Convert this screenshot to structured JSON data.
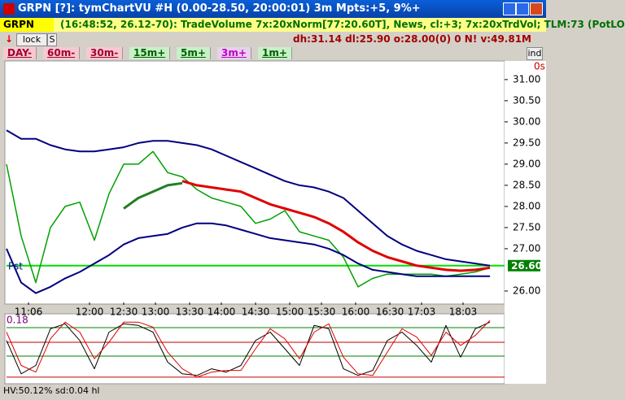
{
  "window": {
    "title": "GRPN [?]: tymChartVU #H (0.00-28.50, 20:00:01) 3m Mpts:+5, 9%+"
  },
  "toolbar": {
    "symbol": "GRPN",
    "info": "(16:48:52, 26.12-70): TradeVolume 7x:20xNorm[77:20.60T], News, cl:+3; 7x:20xTrdVol; TLM:73 (PotLO",
    "lock": "lock",
    "s": "S",
    "stats": "dh:31.14 dl:25.90 o:28.00(0) 0 N! v:49.81M"
  },
  "timeframes": [
    "DAY-",
    "60m-",
    "30m-",
    "15m+",
    "5m+",
    "3m+",
    "1m+"
  ],
  "ind_button": "ind",
  "chart_data": [
    {
      "type": "line",
      "x": [
        0,
        6,
        12,
        18,
        24,
        30,
        36,
        42,
        48,
        54,
        60,
        66,
        72,
        78,
        84,
        90,
        96,
        102,
        108,
        114,
        120,
        126,
        132,
        138,
        144,
        150,
        156,
        162,
        168,
        174,
        180,
        186,
        192,
        198
      ],
      "xlim": [
        0,
        204
      ],
      "xticks": [
        {
          "value": 9,
          "label": "11:06"
        },
        {
          "value": 34,
          "label": "12:00"
        },
        {
          "value": 48,
          "label": "12:30"
        },
        {
          "value": 61,
          "label": "13:00"
        },
        {
          "value": 75,
          "label": "13:30"
        },
        {
          "value": 88,
          "label": "14:00"
        },
        {
          "value": 102,
          "label": "14:30"
        },
        {
          "value": 116,
          "label": "15:00"
        },
        {
          "value": 129,
          "label": "15:30"
        },
        {
          "value": 143,
          "label": "16:00"
        },
        {
          "value": 157,
          "label": "16:30"
        },
        {
          "value": 170,
          "label": "17:03"
        },
        {
          "value": 187,
          "label": "18:03"
        }
      ],
      "ylim": [
        25.73,
        31.44
      ],
      "yticks": [
        {
          "value": 31,
          "label": "31.00"
        },
        {
          "value": 30.5,
          "label": "30.50"
        },
        {
          "value": 30,
          "label": "30.00"
        },
        {
          "value": 29.5,
          "label": "29.50"
        },
        {
          "value": 29,
          "label": "29.00"
        },
        {
          "value": 28.5,
          "label": "28.50"
        },
        {
          "value": 28,
          "label": "28.00"
        },
        {
          "value": 27.5,
          "label": "27.50"
        },
        {
          "value": 27,
          "label": "27.00"
        },
        {
          "value": 26,
          "label": "26.00"
        }
      ],
      "series": [
        {
          "color": "#00a000",
          "width": 1.5,
          "values": [
            29.0,
            27.3,
            26.2,
            27.5,
            28.0,
            28.1,
            27.2,
            28.3,
            29.0,
            29.0,
            29.3,
            28.8,
            28.7,
            28.4,
            28.2,
            28.1,
            28.0,
            27.6,
            27.7,
            27.9,
            27.4,
            27.3,
            27.2,
            26.8,
            26.1,
            26.3,
            26.4,
            26.4,
            26.4,
            26.4,
            26.35,
            26.4,
            26.45,
            26.55
          ]
        },
        {
          "color": "#00007f",
          "width": 2,
          "values": [
            29.8,
            29.6,
            29.6,
            29.45,
            29.35,
            29.3,
            29.3,
            29.35,
            29.4,
            29.5,
            29.55,
            29.55,
            29.5,
            29.45,
            29.35,
            29.2,
            29.05,
            28.9,
            28.75,
            28.6,
            28.5,
            28.45,
            28.35,
            28.2,
            27.9,
            27.6,
            27.3,
            27.1,
            26.95,
            26.85,
            26.75,
            26.7,
            26.65,
            26.6
          ]
        },
        {
          "color": "#00007f",
          "width": 2,
          "values": [
            27.0,
            26.2,
            25.95,
            26.1,
            26.3,
            26.45,
            26.65,
            26.85,
            27.1,
            27.25,
            27.3,
            27.35,
            27.5,
            27.6,
            27.6,
            27.55,
            27.45,
            27.35,
            27.25,
            27.2,
            27.15,
            27.1,
            27.0,
            26.85,
            26.65,
            26.5,
            26.45,
            26.4,
            26.35,
            26.35,
            26.35,
            26.35,
            26.35,
            26.35
          ]
        },
        {
          "color": "#e00000",
          "width": 3,
          "values": [
            null,
            null,
            null,
            null,
            null,
            null,
            null,
            null,
            null,
            null,
            null,
            null,
            28.6,
            28.5,
            28.45,
            28.4,
            28.35,
            28.2,
            28.05,
            27.95,
            27.85,
            27.75,
            27.6,
            27.4,
            27.15,
            26.95,
            26.8,
            26.7,
            26.6,
            26.55,
            26.5,
            26.48,
            26.5,
            26.55
          ]
        },
        {
          "color": "#208020",
          "width": 3,
          "values": [
            null,
            null,
            null,
            null,
            null,
            null,
            null,
            null,
            27.95,
            28.2,
            28.35,
            28.5,
            28.55,
            null,
            null,
            null,
            null,
            null,
            null,
            null,
            null,
            null,
            null,
            null,
            null,
            null,
            null,
            null,
            null,
            null,
            null,
            null,
            null,
            null
          ]
        }
      ],
      "price_line": {
        "value": 26.6,
        "label": "26.60",
        "color": "#00e000"
      },
      "annotations": [
        "Pst",
        "0s"
      ]
    },
    {
      "type": "line",
      "x": [
        0,
        6,
        12,
        18,
        24,
        30,
        36,
        42,
        48,
        54,
        60,
        66,
        72,
        78,
        84,
        90,
        96,
        102,
        108,
        114,
        120,
        126,
        132,
        138,
        144,
        150,
        156,
        162,
        168,
        174,
        180,
        186,
        192,
        198
      ],
      "xlim": [
        0,
        204
      ],
      "ylim": [
        -0.2,
        0.2
      ],
      "yticks": [
        0.18
      ],
      "hlines": [
        {
          "value": 0.127,
          "color": "#008000"
        },
        {
          "value": 0.039,
          "color": "#c00000"
        },
        {
          "value": -0.044,
          "color": "#008000"
        },
        {
          "value": -0.17,
          "color": "#c00000"
        }
      ],
      "series": [
        {
          "color": "#000000",
          "width": 1,
          "values": [
            0.05,
            -0.15,
            -0.1,
            0.12,
            0.15,
            0.05,
            -0.12,
            0.1,
            0.15,
            0.14,
            0.1,
            -0.08,
            -0.15,
            -0.16,
            -0.12,
            -0.14,
            -0.1,
            0.05,
            0.1,
            0.0,
            -0.1,
            0.14,
            0.12,
            -0.12,
            -0.16,
            -0.13,
            0.05,
            0.1,
            0.02,
            -0.08,
            0.14,
            -0.05,
            0.12,
            0.16
          ]
        },
        {
          "color": "#e00000",
          "width": 1,
          "values": [
            0.1,
            -0.1,
            -0.14,
            0.06,
            0.16,
            0.1,
            -0.06,
            0.04,
            0.16,
            0.16,
            0.13,
            -0.02,
            -0.12,
            -0.17,
            -0.14,
            -0.13,
            -0.13,
            0.0,
            0.12,
            0.06,
            -0.06,
            0.1,
            0.15,
            -0.05,
            -0.15,
            -0.16,
            -0.02,
            0.12,
            0.07,
            -0.04,
            0.1,
            0.02,
            0.08,
            0.17
          ]
        }
      ]
    }
  ],
  "status": "HV:50.12% sd:0.04 hl"
}
